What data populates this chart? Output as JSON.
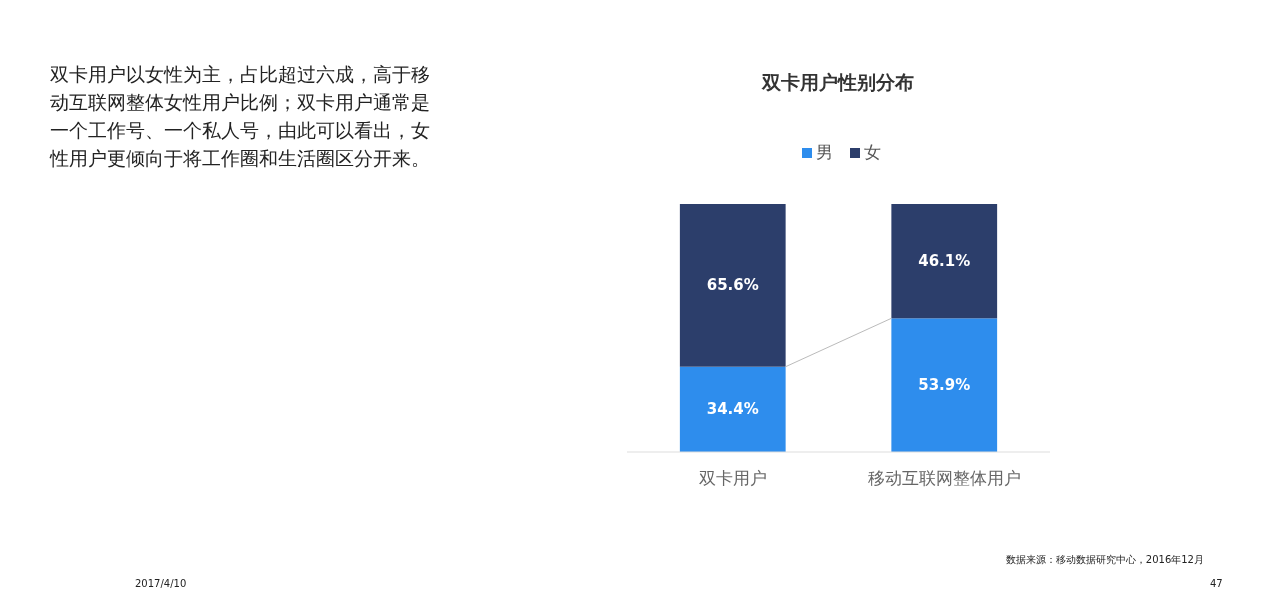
{
  "chart_data": {
    "type": "bar",
    "title": "双卡用户性别分布",
    "categories": [
      "双卡用户",
      "移动互联网整体用户"
    ],
    "series": [
      {
        "name": "男",
        "color": "#2e8ded",
        "values": [
          34.4,
          53.9
        ],
        "value_labels": [
          "34.4%",
          "53.9%"
        ]
      },
      {
        "name": "女",
        "color": "#2c3e6b",
        "values": [
          65.6,
          46.1
        ],
        "value_labels": [
          "65.6%",
          "46.1%"
        ]
      }
    ],
    "stacked": true,
    "ylim": [
      0,
      100
    ],
    "tick_labels": "x",
    "legend": "top",
    "annotations": [
      "双卡用户以女性为主，占比超过六成，高于移动互联网整体女性用户比例；双卡用户通常是一个工作号、一个私人号，由此可以看出，女性用户更倾向于将工作圈和生活圈区分开来。",
      "数据来源：移动数据研究中心，2016年12月",
      "2017/4/10",
      "47"
    ]
  }
}
